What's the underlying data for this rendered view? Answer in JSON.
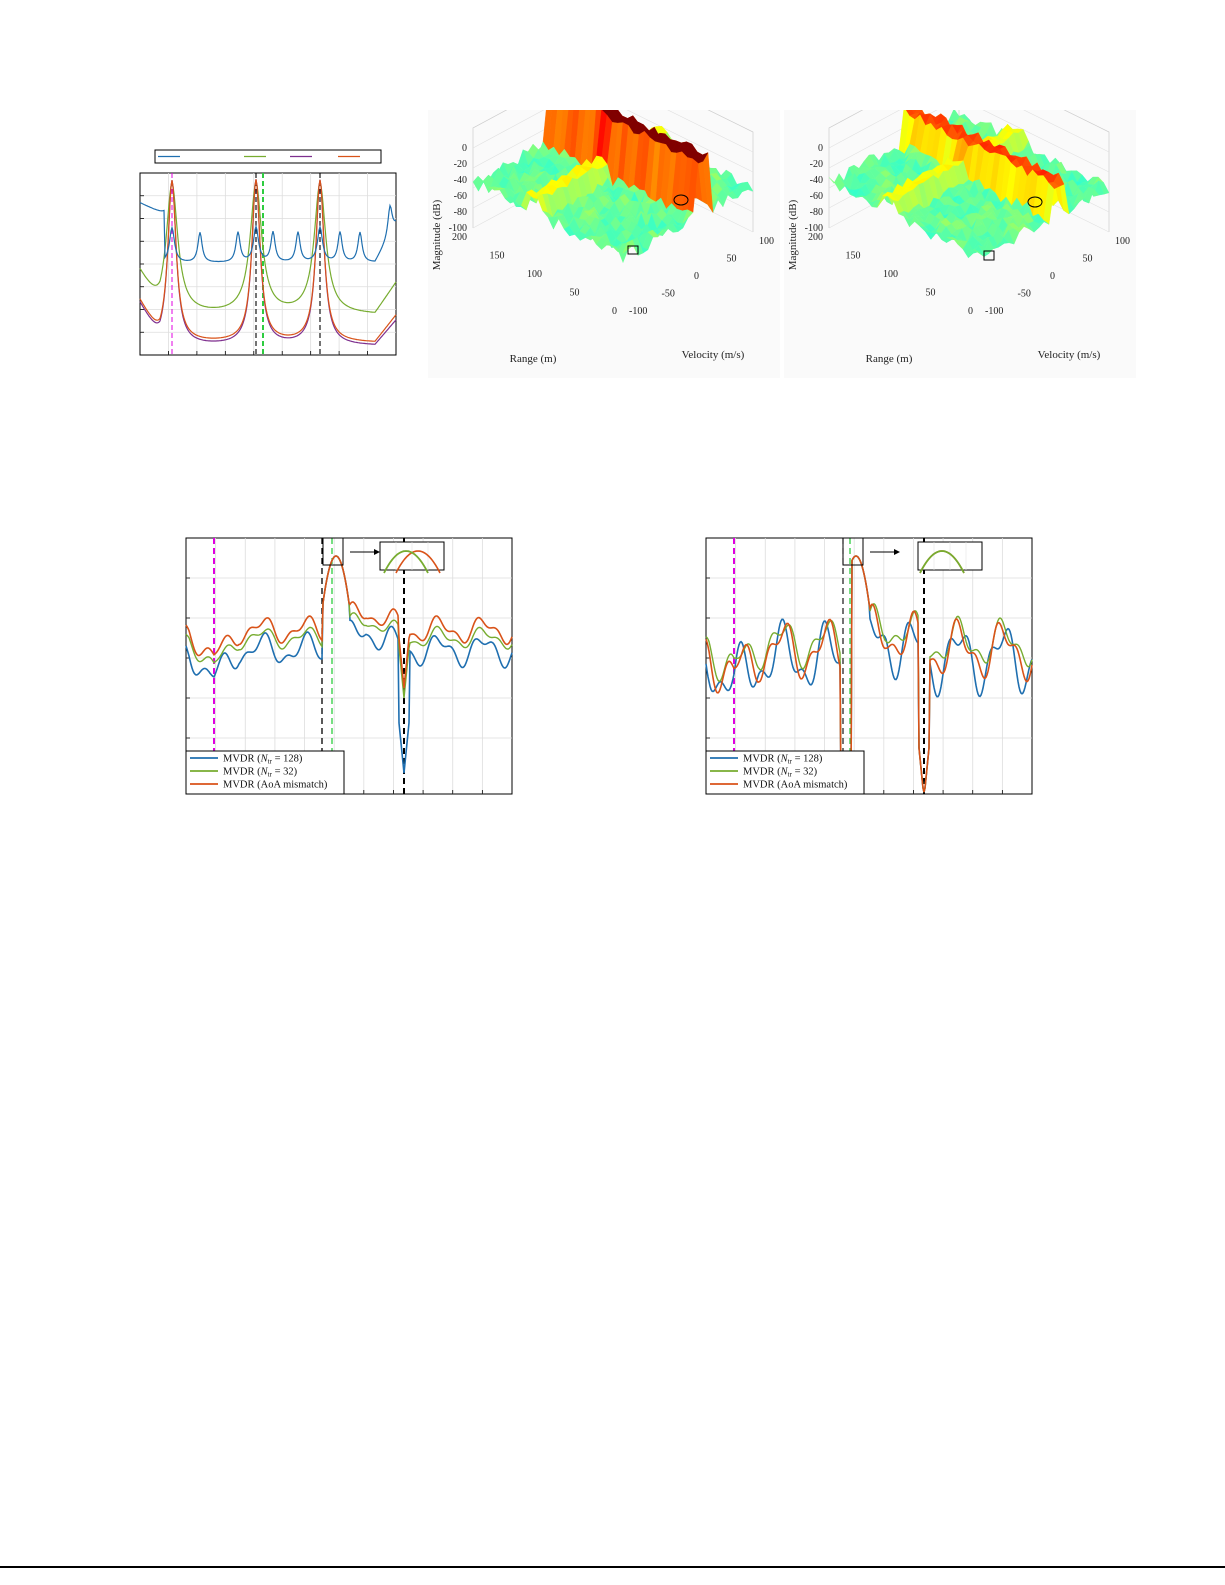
{
  "chart_data": [
    {
      "type": "line",
      "title": "",
      "xlabel": "",
      "ylabel": "",
      "grid": true,
      "legend_position": "top",
      "tick_labels_shown": false,
      "legend_entries": [
        "",
        "",
        "",
        ""
      ],
      "series_colors": [
        "#1f6fb0",
        "#77ac30",
        "#7e2f8e",
        "#d95319"
      ],
      "reference_lines": [
        {
          "color": "#e000e0",
          "style": "dashed"
        },
        {
          "color": "#000000",
          "style": "dashed"
        },
        {
          "color": "#2ecc40",
          "style": "dashed"
        },
        {
          "color": "#000000",
          "style": "dashed"
        }
      ]
    },
    {
      "type": "surface3d",
      "zlabel": "Magnitude (dB)",
      "xlabel": "Range (m)",
      "ylabel": "Velocity (m/s)",
      "zticks": [
        "0",
        "-20",
        "-40",
        "-60",
        "-80",
        "-100"
      ],
      "xticks": [
        "200",
        "150",
        "100",
        "50",
        "0"
      ],
      "yticks": [
        "-100",
        "-50",
        "0",
        "50",
        "100"
      ],
      "colormap": "jet",
      "markers": [
        "circle",
        "square"
      ]
    },
    {
      "type": "surface3d",
      "zlabel": "Magnitude (dB)",
      "xlabel": "Range (m)",
      "ylabel": "Velocity (m/s)",
      "zticks": [
        "0",
        "-20",
        "-40",
        "-60",
        "-80",
        "-100"
      ],
      "xticks": [
        "200",
        "150",
        "100",
        "50",
        "0"
      ],
      "yticks": [
        "-100",
        "-50",
        "0",
        "50",
        "100"
      ],
      "colormap": "jet",
      "markers": [
        "circle",
        "square"
      ]
    },
    {
      "type": "line",
      "grid": true,
      "legend_position": "bottom-left",
      "series": [
        {
          "name": "MVDR (N_tr = 128)",
          "color": "#1f6fb0"
        },
        {
          "name": "MVDR (N_tr = 32)",
          "color": "#77ac30"
        },
        {
          "name": "MVDR (AoA mismatch)",
          "color": "#d95319"
        }
      ],
      "inset": "zoom-peak"
    },
    {
      "type": "line",
      "grid": true,
      "legend_position": "bottom-left",
      "series": [
        {
          "name": "MVDR (N_tr = 128)",
          "color": "#1f6fb0"
        },
        {
          "name": "MVDR (N_tr = 32)",
          "color": "#77ac30"
        },
        {
          "name": "MVDR (AoA mismatch)",
          "color": "#d95319"
        }
      ],
      "inset": "zoom-peak"
    }
  ],
  "legend_labels": {
    "n128_prefix": "MVDR (",
    "n_var": "N",
    "n_sub": "tr",
    "n128_suffix": " = 128)",
    "n32_suffix": " = 32)",
    "aoa": "MVDR (AoA mismatch)"
  },
  "surface_labels": {
    "zlabel": "Magnitude (dB)",
    "xlabel": "Range (m)",
    "ylabel": "Velocity (m/s)",
    "zticks": [
      "0",
      "-20",
      "-40",
      "-60",
      "-80",
      "-100"
    ],
    "xticks": [
      "200",
      "150",
      "100",
      "50",
      "0"
    ],
    "yticks": [
      "-100",
      "-50",
      "0",
      "50",
      "100"
    ]
  }
}
